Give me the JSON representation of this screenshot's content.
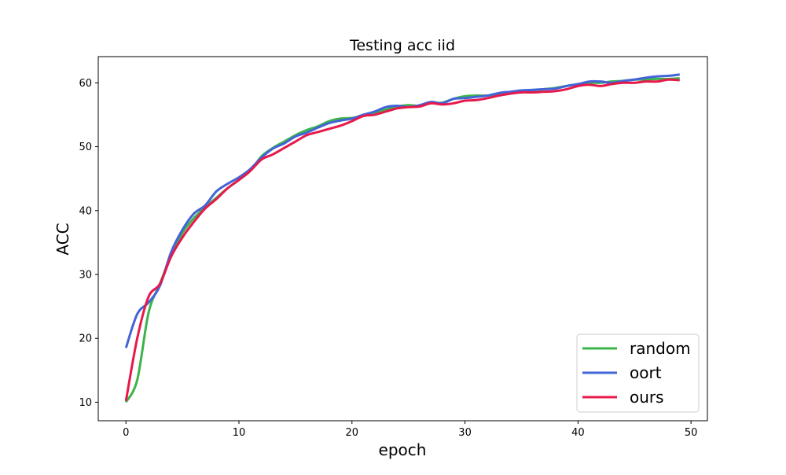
{
  "chart_data": {
    "type": "line",
    "title": "Testing acc iid",
    "xlabel": "epoch",
    "ylabel": "ACC",
    "xlim": [
      -2.45,
      51.45
    ],
    "ylim": [
      7.1,
      64.1
    ],
    "xticks": [
      0,
      10,
      20,
      30,
      40,
      50
    ],
    "yticks": [
      10,
      20,
      30,
      40,
      50,
      60
    ],
    "grid": false,
    "legend_position": "bottom-right",
    "x": [
      0,
      1,
      2,
      3,
      4,
      5,
      6,
      7,
      8,
      9,
      10,
      11,
      12,
      13,
      14,
      15,
      16,
      17,
      18,
      19,
      20,
      21,
      22,
      23,
      24,
      25,
      26,
      27,
      28,
      29,
      30,
      31,
      32,
      33,
      34,
      35,
      36,
      37,
      38,
      39,
      40,
      41,
      42,
      43,
      44,
      45,
      46,
      47,
      48,
      49
    ],
    "series": [
      {
        "name": "random",
        "color": "#3cb44b",
        "values": [
          10.0,
          13.5,
          24.0,
          28.5,
          33.0,
          36.5,
          38.8,
          40.5,
          42.0,
          43.5,
          44.8,
          46.2,
          48.5,
          49.8,
          50.8,
          51.8,
          52.6,
          53.2,
          54.0,
          54.4,
          54.5,
          54.8,
          55.3,
          55.8,
          56.3,
          56.5,
          56.4,
          56.8,
          56.9,
          57.5,
          57.9,
          58.0,
          58.0,
          58.2,
          58.5,
          58.8,
          58.8,
          59.0,
          59.2,
          59.5,
          59.8,
          60.0,
          60.0,
          60.2,
          60.3,
          60.5,
          60.5,
          60.6,
          60.6,
          60.7
        ]
      },
      {
        "name": "oort",
        "color": "#4363d8",
        "values": [
          18.5,
          23.8,
          25.6,
          28.2,
          33.5,
          37.0,
          39.5,
          40.8,
          43.0,
          44.2,
          45.2,
          46.5,
          48.3,
          49.7,
          50.5,
          51.6,
          52.2,
          53.0,
          53.7,
          54.1,
          54.4,
          55.0,
          55.5,
          56.2,
          56.4,
          56.2,
          56.5,
          57.0,
          56.8,
          57.5,
          57.6,
          57.8,
          58.0,
          58.4,
          58.6,
          58.8,
          58.9,
          59.0,
          59.1,
          59.5,
          59.8,
          60.2,
          60.2,
          60.0,
          60.3,
          60.5,
          60.8,
          61.0,
          61.1,
          61.3
        ]
      },
      {
        "name": "ours",
        "color": "#e6194b",
        "values": [
          10.2,
          20.0,
          26.5,
          28.5,
          32.8,
          35.8,
          38.2,
          40.3,
          41.8,
          43.5,
          44.8,
          46.2,
          48.0,
          48.8,
          49.8,
          50.8,
          51.8,
          52.3,
          52.8,
          53.3,
          54.0,
          54.8,
          55.0,
          55.5,
          56.0,
          56.2,
          56.3,
          56.8,
          56.6,
          56.8,
          57.2,
          57.3,
          57.6,
          58.0,
          58.3,
          58.5,
          58.5,
          58.6,
          58.7,
          59.0,
          59.5,
          59.7,
          59.5,
          59.8,
          60.0,
          60.0,
          60.2,
          60.2,
          60.5,
          60.4
        ]
      }
    ]
  }
}
